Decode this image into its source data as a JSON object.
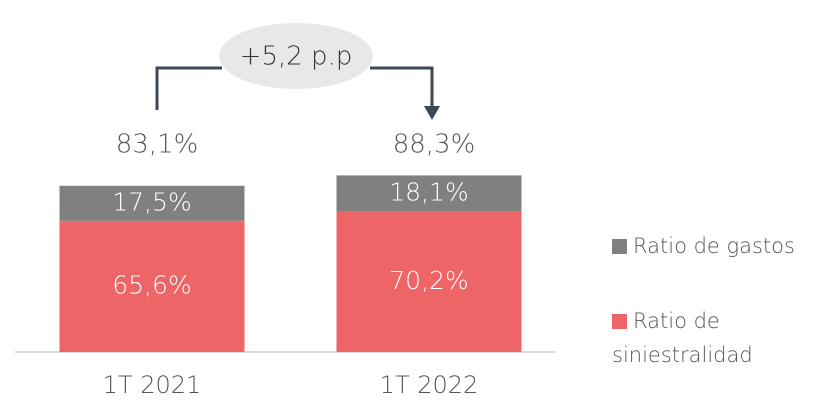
{
  "chart_data": {
    "type": "stacked_bar",
    "categories": [
      "1T 2021",
      "1T 2022"
    ],
    "series": [
      {
        "name": "Ratio de siniestralidad",
        "color": "#ee6567",
        "values": [
          65.6,
          70.2
        ],
        "value_labels": [
          "65,6%",
          "70,2%"
        ]
      },
      {
        "name": "Ratio de gastos",
        "color": "#808080",
        "values": [
          17.5,
          18.1
        ],
        "value_labels": [
          "17,5%",
          "18,1%"
        ]
      }
    ],
    "total_labels": [
      "83,1%",
      "88,3%"
    ],
    "annotation": "+5,2 p.p"
  }
}
